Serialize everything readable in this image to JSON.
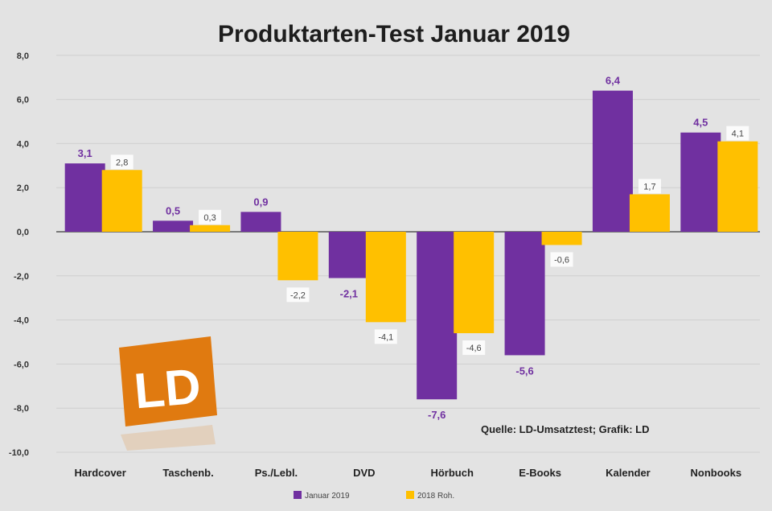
{
  "chart_data": {
    "type": "bar",
    "title": "Produktarten-Test Januar 2019",
    "categories": [
      "Hardcover",
      "Taschenb.",
      "Ps./Lebl.",
      "DVD",
      "Hörbuch",
      "E-Books",
      "Kalender",
      "Nonbooks"
    ],
    "series": [
      {
        "name": "Januar 2019",
        "color": "#7030a0",
        "values": [
          3.1,
          0.5,
          0.9,
          -2.1,
          -7.6,
          -5.6,
          6.4,
          4.5
        ],
        "labels": [
          "3,1",
          "0,5",
          "0,9",
          "-2,1",
          "-7,6",
          "-5,6",
          "6,4",
          "4,5"
        ]
      },
      {
        "name": "2018 Roh.",
        "color": "#ffc000",
        "values": [
          2.8,
          0.3,
          -2.2,
          -4.1,
          -4.6,
          -0.6,
          1.7,
          4.1
        ],
        "labels": [
          "2,8",
          "0,3",
          "-2,2",
          "-4,1",
          "-4,6",
          "-0,6",
          "1,7",
          "4,1"
        ]
      }
    ],
    "ylim": [
      -10,
      8
    ],
    "yticks": [
      8,
      6,
      4,
      2,
      0,
      -2,
      -4,
      -6,
      -8,
      -10
    ],
    "ytick_labels": [
      "8,0",
      "6,0",
      "4,0",
      "2,0",
      "0,0",
      "-2,0",
      "-4,0",
      "-6,0",
      "-8,0",
      "-10,0"
    ],
    "grid": true,
    "legend_position": "bottom",
    "annotation": "Quelle: LD-Umsatztest; Grafik: LD"
  },
  "logo": {
    "text": "LD",
    "color": "#e07a10"
  }
}
